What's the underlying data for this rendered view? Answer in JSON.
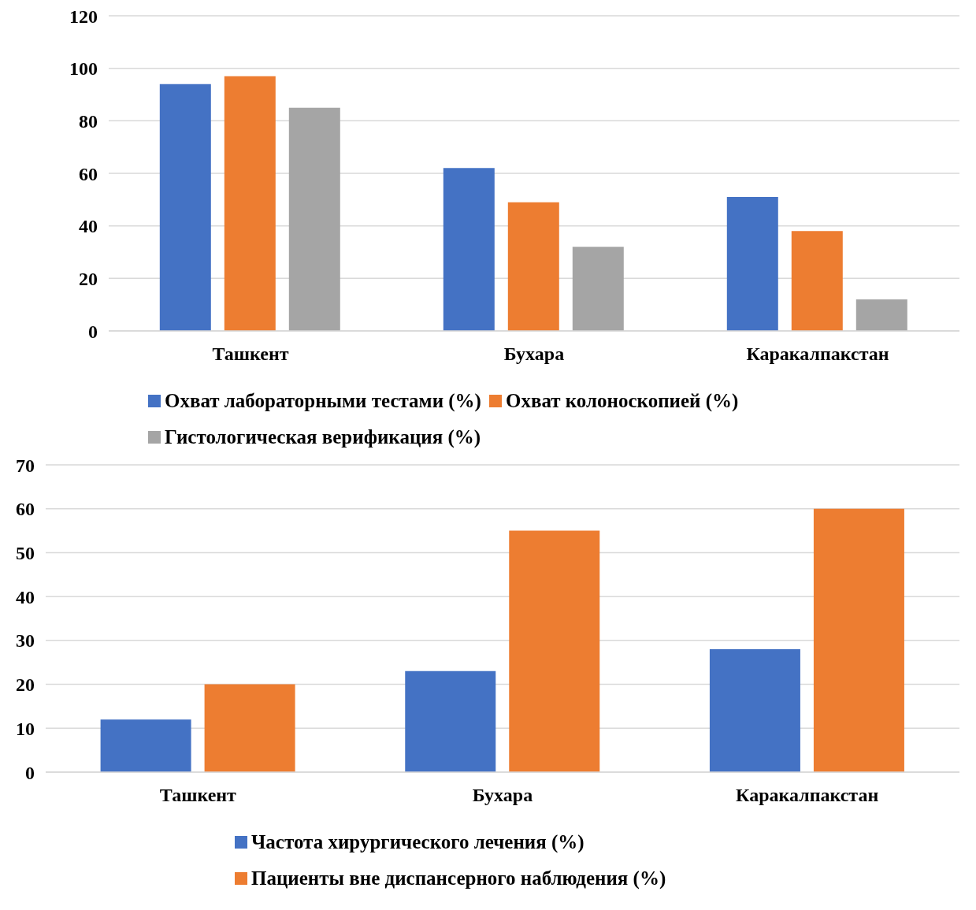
{
  "chart_data": [
    {
      "type": "bar",
      "categories": [
        "Ташкент",
        "Бухара",
        "Каракалпакстан"
      ],
      "series": [
        {
          "name": "Охват лабораторными тестами (%)",
          "color": "#4472c4",
          "values": [
            94,
            62,
            51
          ]
        },
        {
          "name": "Охват колоноскопией (%)",
          "color": "#ed7d31",
          "values": [
            97,
            49,
            38
          ]
        },
        {
          "name": "Гистологическая верификация (%)",
          "color": "#a5a5a5",
          "values": [
            85,
            32,
            12
          ]
        }
      ],
      "ylim": [
        0,
        120
      ],
      "yticks": [
        0,
        20,
        40,
        60,
        80,
        100,
        120
      ],
      "grid": "y",
      "legend": "bottom"
    },
    {
      "type": "bar",
      "categories": [
        "Ташкент",
        "Бухара",
        "Каракалпакстан"
      ],
      "series": [
        {
          "name": "Частота хирургического лечения (%)",
          "color": "#4472c4",
          "values": [
            12,
            23,
            28
          ]
        },
        {
          "name": "Пациенты вне диспансерного наблюдения (%)",
          "color": "#ed7d31",
          "values": [
            20,
            55,
            60
          ]
        }
      ],
      "ylim": [
        0,
        70
      ],
      "yticks": [
        0,
        10,
        20,
        30,
        40,
        50,
        60,
        70
      ],
      "grid": "y",
      "legend": "bottom"
    }
  ]
}
